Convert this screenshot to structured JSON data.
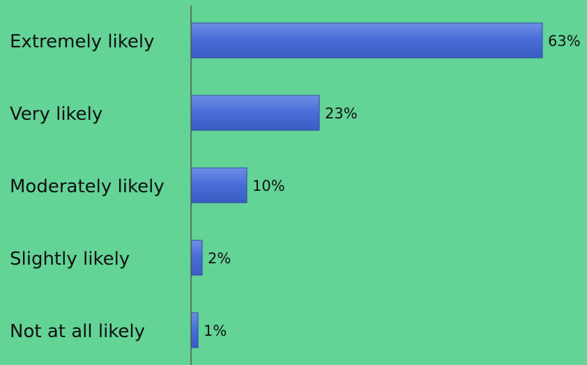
{
  "chart_data": {
    "type": "bar",
    "orientation": "horizontal",
    "categories": [
      "Extremely likely",
      "Very likely",
      "Moderately likely",
      "Slightly likely",
      "Not at all likely"
    ],
    "values": [
      63,
      23,
      10,
      2,
      1
    ],
    "value_labels": [
      "63%",
      "23%",
      "10%",
      "2%",
      "1%"
    ],
    "title": "",
    "xlabel": "",
    "ylabel": "",
    "xlim": [
      0,
      63
    ],
    "grid": false,
    "legend": "none"
  },
  "colors": {
    "background": "#63d396",
    "bar_fill_top": "#6f8ee6",
    "bar_fill": "#4a6fd8",
    "bar_fill_bottom": "#3a5bc4",
    "bar_stroke": "#2f4aa0",
    "axis": "#555555",
    "text": "#111111"
  }
}
